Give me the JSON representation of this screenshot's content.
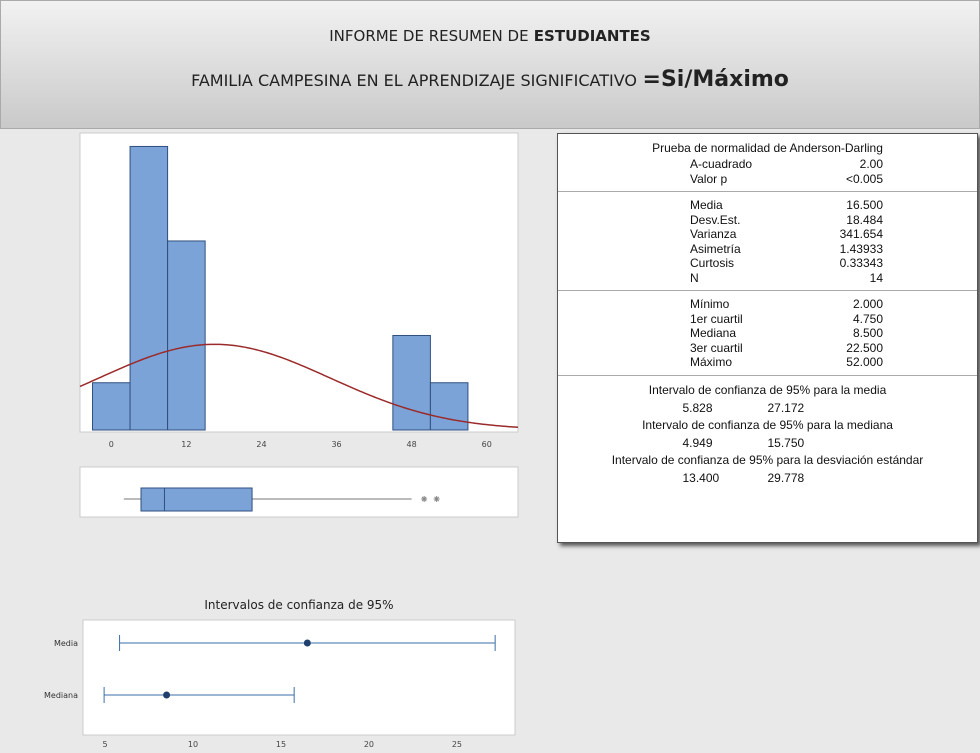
{
  "header": {
    "line1": [
      "INFORME DE RESUMEN DE",
      "ESTUDIANTES"
    ],
    "line2": [
      "FAMILIA CAMPESINA EN EL APRENDIZAJE SIGNIFICATIVO",
      "=Si/Máximo"
    ]
  },
  "chart_data": [
    {
      "type": "histogram",
      "bins": [
        -3,
        3,
        9,
        15,
        21,
        27,
        33,
        39,
        45,
        51,
        57
      ],
      "counts": [
        1,
        6,
        4,
        0,
        0,
        0,
        0,
        0,
        2,
        1
      ],
      "color": "#7ba3d8",
      "curve_color": "#9b2a2a",
      "xlim": [
        -5,
        65
      ],
      "ylim": [
        0,
        6.2
      ],
      "xticks": [
        0,
        12,
        24,
        36,
        48,
        60
      ]
    },
    {
      "type": "boxplot",
      "whisker_high": 48,
      "outliers": [
        50,
        52
      ],
      "color": "#7ba3d8",
      "xlim": [
        -5,
        65
      ]
    },
    {
      "type": "interval",
      "title": "Intervalos de confianza de 95%",
      "categories": [
        "Media",
        "Mediana"
      ],
      "color": "#3a6ea8",
      "xlim": [
        3.75,
        28.3
      ],
      "xticks": [
        5,
        10,
        15,
        20,
        25
      ]
    }
  ],
  "stats": {
    "normality": {
      "title": "Prueba de normalidad de Anderson-Darling",
      "rows": [
        [
          "A-cuadrado",
          "2.00"
        ],
        [
          "Valor p",
          "<0.005"
        ]
      ]
    },
    "descriptive": [
      [
        "Media",
        "16.500"
      ],
      [
        "Desv.Est.",
        "18.484"
      ],
      [
        "Varianza",
        "341.654"
      ],
      [
        "Asimetría",
        "1.43933"
      ],
      [
        "Curtosis",
        "0.33343"
      ],
      [
        "N",
        "14"
      ]
    ],
    "quantiles": [
      [
        "Mínimo",
        "2.000"
      ],
      [
        "1er cuartil",
        "4.750"
      ],
      [
        "Mediana",
        "8.500"
      ],
      [
        "3er cuartil",
        "22.500"
      ],
      [
        "Máximo",
        "52.000"
      ]
    ],
    "intervals": [
      {
        "title": "Intervalo de confianza de 95% para la media",
        "low": "5.828",
        "high": "27.172"
      },
      {
        "title": "Intervalo de confianza de 95% para la mediana",
        "low": "4.949",
        "high": "15.750"
      },
      {
        "title": "Intervalo de confianza de 95% para la desviación estándar",
        "low": "13.400",
        "high": "29.778"
      }
    ]
  }
}
